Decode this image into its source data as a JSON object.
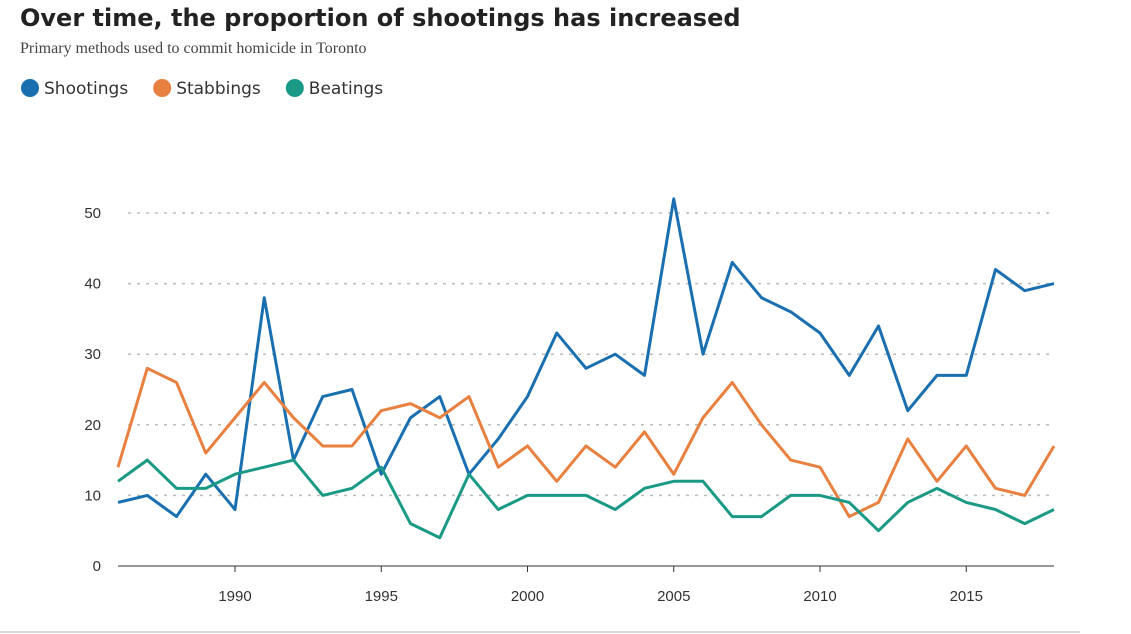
{
  "chart_data": {
    "type": "line",
    "title": "Over time, the proportion of shootings has increased",
    "subtitle": "Primary methods used to commit homicide in Toronto",
    "x": [
      1986,
      1987,
      1988,
      1989,
      1990,
      1991,
      1992,
      1993,
      1994,
      1995,
      1996,
      1997,
      1998,
      1999,
      2000,
      2001,
      2002,
      2003,
      2004,
      2005,
      2006,
      2007,
      2008,
      2009,
      2010,
      2011,
      2012,
      2013,
      2014,
      2015,
      2016,
      2017,
      2018
    ],
    "series": [
      {
        "name": "Shootings",
        "color": "#1a6fb0",
        "values": [
          9,
          10,
          7,
          13,
          8,
          38,
          15,
          24,
          25,
          13,
          21,
          24,
          13,
          18,
          24,
          33,
          28,
          30,
          27,
          52,
          30,
          43,
          38,
          36,
          33,
          27,
          34,
          22,
          27,
          27,
          42,
          39,
          40
        ]
      },
      {
        "name": "Stabbings",
        "color": "#e8803f",
        "values": [
          14,
          28,
          26,
          16,
          21,
          26,
          21,
          17,
          17,
          22,
          23,
          21,
          24,
          14,
          17,
          12,
          17,
          14,
          19,
          13,
          21,
          26,
          20,
          15,
          14,
          7,
          9,
          18,
          12,
          17,
          11,
          10,
          17
        ]
      },
      {
        "name": "Beatings",
        "color": "#1a9a86",
        "values": [
          12,
          15,
          11,
          11,
          13,
          14,
          15,
          10,
          11,
          14,
          6,
          4,
          13,
          8,
          10,
          10,
          10,
          8,
          11,
          12,
          12,
          7,
          7,
          10,
          10,
          9,
          5,
          9,
          11,
          9,
          8,
          6,
          8
        ]
      }
    ],
    "xlim": [
      1986,
      2018
    ],
    "xticks": [
      1990,
      1995,
      2000,
      2005,
      2010,
      2015
    ],
    "ylim": [
      0,
      55
    ],
    "yticks": [
      0,
      10,
      20,
      30,
      40,
      50
    ],
    "grid": true
  }
}
